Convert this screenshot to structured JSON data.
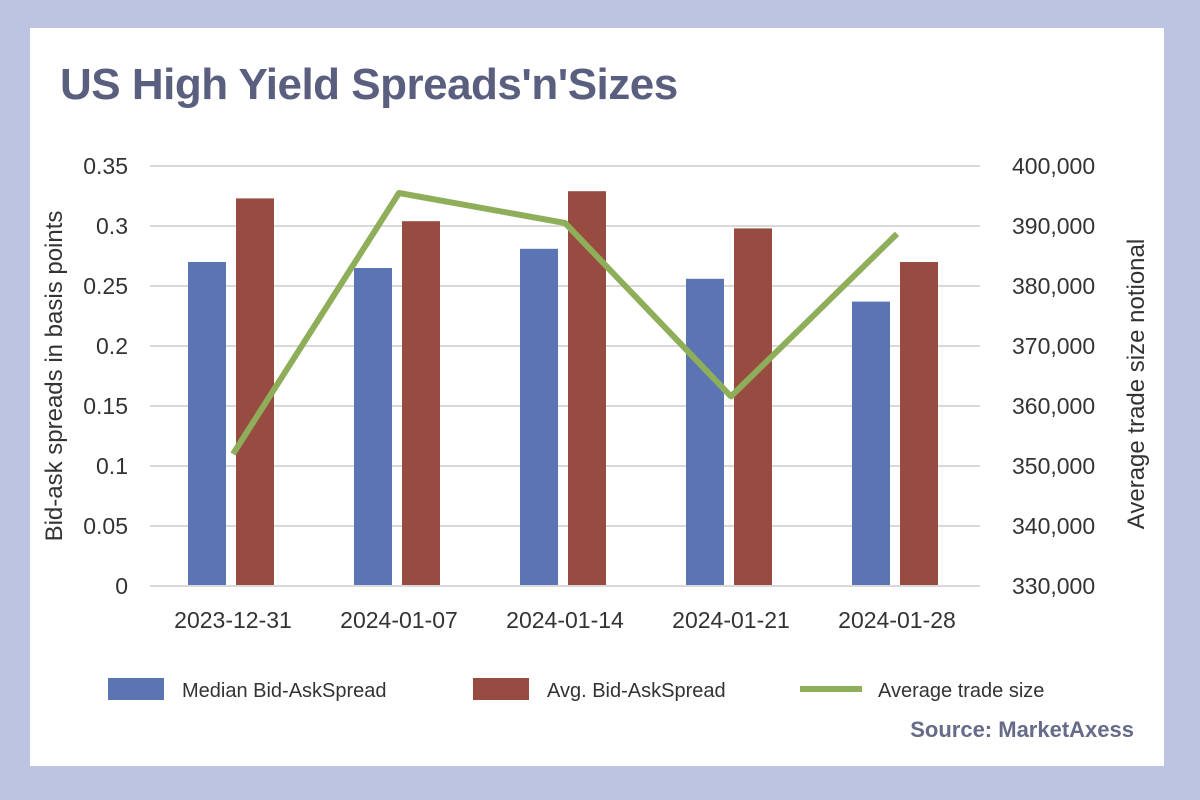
{
  "header": {
    "title": "US High Yield Spreads'n'Sizes"
  },
  "footer": {
    "source": "Source: MarketAxess"
  },
  "colors": {
    "page_background": "#bcc4e2",
    "median_bar": "#5b74b3",
    "avg_bar": "#984b41",
    "trade_line": "#8fae5a",
    "gridline": "#d9d9d9",
    "title_text": "#5b5f7f"
  },
  "chart_data": {
    "type": "bar",
    "title": "US High Yield Spreads'n'Sizes",
    "categories": [
      "2023-12-31",
      "2024-01-07",
      "2024-01-14",
      "2024-01-21",
      "2024-01-28"
    ],
    "series": [
      {
        "name": "Median Bid-AskSpread",
        "type": "bar",
        "axis": "left",
        "values": [
          0.27,
          0.265,
          0.281,
          0.256,
          0.237
        ]
      },
      {
        "name": "Avg. Bid-AskSpread",
        "type": "bar",
        "axis": "left",
        "values": [
          0.323,
          0.304,
          0.329,
          0.298,
          0.27
        ]
      },
      {
        "name": "Average trade size",
        "type": "line",
        "axis": "right",
        "values": [
          352000,
          395500,
          390500,
          361600,
          388700
        ]
      }
    ],
    "ylabel": "Bid-ask spreads in basis points",
    "ylim": [
      0,
      0.35
    ],
    "yticks": [
      "0",
      "0.05",
      "0.1",
      "0.15",
      "0.2",
      "0.25",
      "0.3",
      "0.35"
    ],
    "y2label": "Average trade size notional",
    "y2lim": [
      330000,
      400000
    ],
    "y2ticks": [
      "330,000",
      "340,000",
      "350,000",
      "360,000",
      "370,000",
      "380,000",
      "390,000",
      "400,000"
    ],
    "grid": true,
    "legend_position": "bottom"
  }
}
